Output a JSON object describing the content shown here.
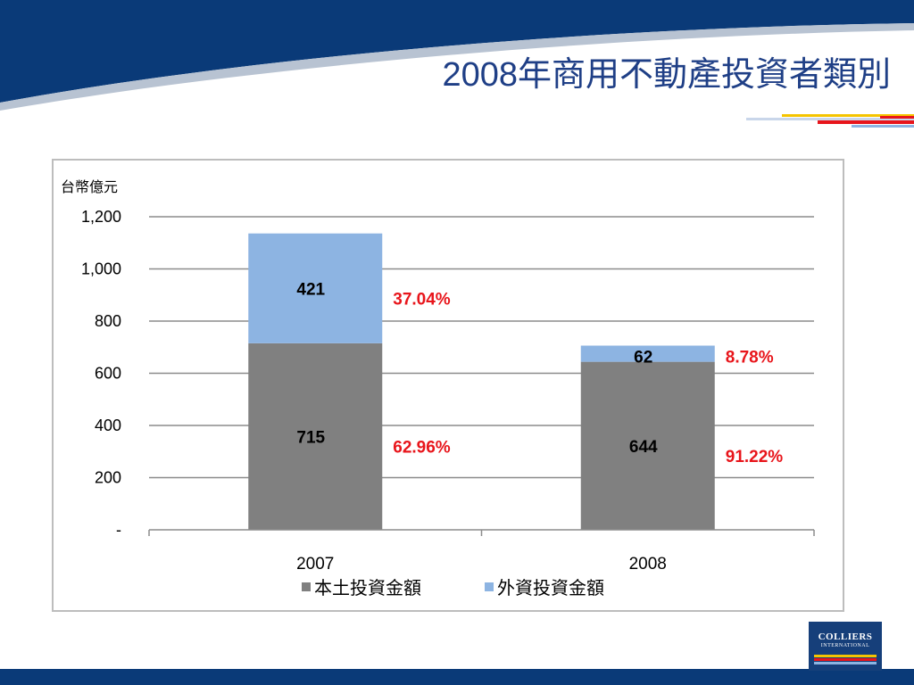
{
  "slide": {
    "title": "2008年商用不動產投資者類別",
    "logo_line1": "COLLIERS",
    "logo_line2": "INTERNATIONAL"
  },
  "colors": {
    "header_navy": "#0a3a78",
    "title_blue": "#1f3f86",
    "domestic_gray": "#808080",
    "foreign_blue": "#8db4e2",
    "percent_red": "#e8151b"
  },
  "chart_data": {
    "type": "bar",
    "stacked": true,
    "unit_label": "台幣億元",
    "categories": [
      "2007",
      "2008"
    ],
    "series": [
      {
        "name": "本土投資金額",
        "values": [
          715,
          644
        ],
        "color": "#808080"
      },
      {
        "name": "外資投資金額",
        "values": [
          421,
          62
        ],
        "color": "#8db4e2"
      }
    ],
    "percent_labels": [
      [
        "62.96%",
        "91.22%"
      ],
      [
        "37.04%",
        "8.78%"
      ]
    ],
    "ylim": [
      0,
      1200
    ],
    "yticks": [
      {
        "value": 0,
        "label": "-"
      },
      {
        "value": 200,
        "label": "200"
      },
      {
        "value": 400,
        "label": "400"
      },
      {
        "value": 600,
        "label": "600"
      },
      {
        "value": 800,
        "label": "800"
      },
      {
        "value": 1000,
        "label": "1,000"
      },
      {
        "value": 1200,
        "label": "1,200"
      }
    ],
    "grid": true,
    "legend_position": "bottom"
  }
}
